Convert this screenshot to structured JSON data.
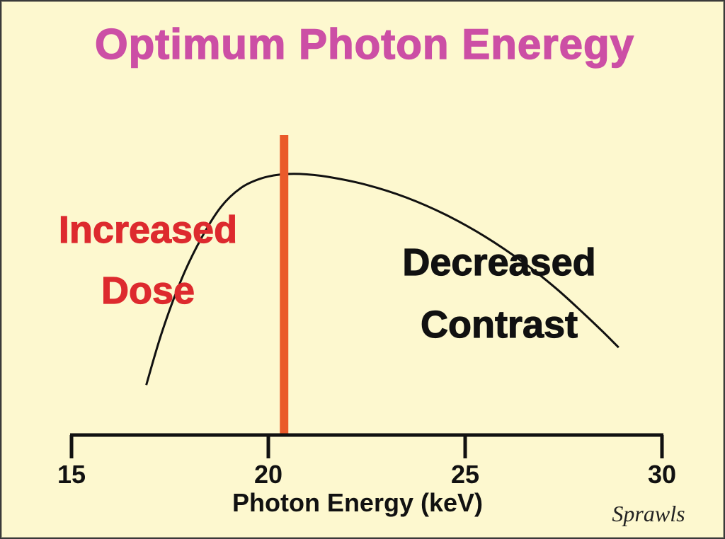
{
  "chart_data": {
    "type": "line",
    "title": "Optimum Photon Eneregy",
    "xlabel": "Photon Energy (keV)",
    "ylabel": "",
    "xlim": [
      15,
      30
    ],
    "x_ticks": [
      15,
      20,
      25,
      30
    ],
    "x_tick_labels": [
      "15",
      "20",
      "25",
      "30"
    ],
    "grid": false,
    "y_axis_shown": false,
    "ylim": [
      0,
      1
    ],
    "series": [
      {
        "color": "#111111",
        "x": [
          16.9,
          17.3,
          17.8,
          18.3,
          18.8,
          19.3,
          19.8,
          20.3,
          20.8,
          21.5,
          22.5,
          23.5,
          24.5,
          25.5,
          26.5,
          27.3,
          28.0,
          28.5,
          28.9
        ],
        "y": [
          0.16,
          0.33,
          0.5,
          0.63,
          0.73,
          0.79,
          0.82,
          0.833,
          0.835,
          0.826,
          0.8,
          0.76,
          0.705,
          0.635,
          0.55,
          0.47,
          0.39,
          0.33,
          0.28
        ]
      }
    ],
    "reference_line": {
      "x": 20.4,
      "color": "#ea5a2a"
    },
    "annotations": [
      {
        "lines": [
          "Increased",
          "Dose"
        ],
        "color": "#dd2a2e"
      },
      {
        "lines": [
          "Decreased",
          "Contrast"
        ],
        "color": "#111111"
      }
    ]
  },
  "credit": "Sprawls",
  "colors": {
    "background": "#fdf8cf",
    "title": "#cc4fa5",
    "increased_dose": "#dd2a2e",
    "optimum_line": "#ea5a2a",
    "text": "#111111"
  }
}
